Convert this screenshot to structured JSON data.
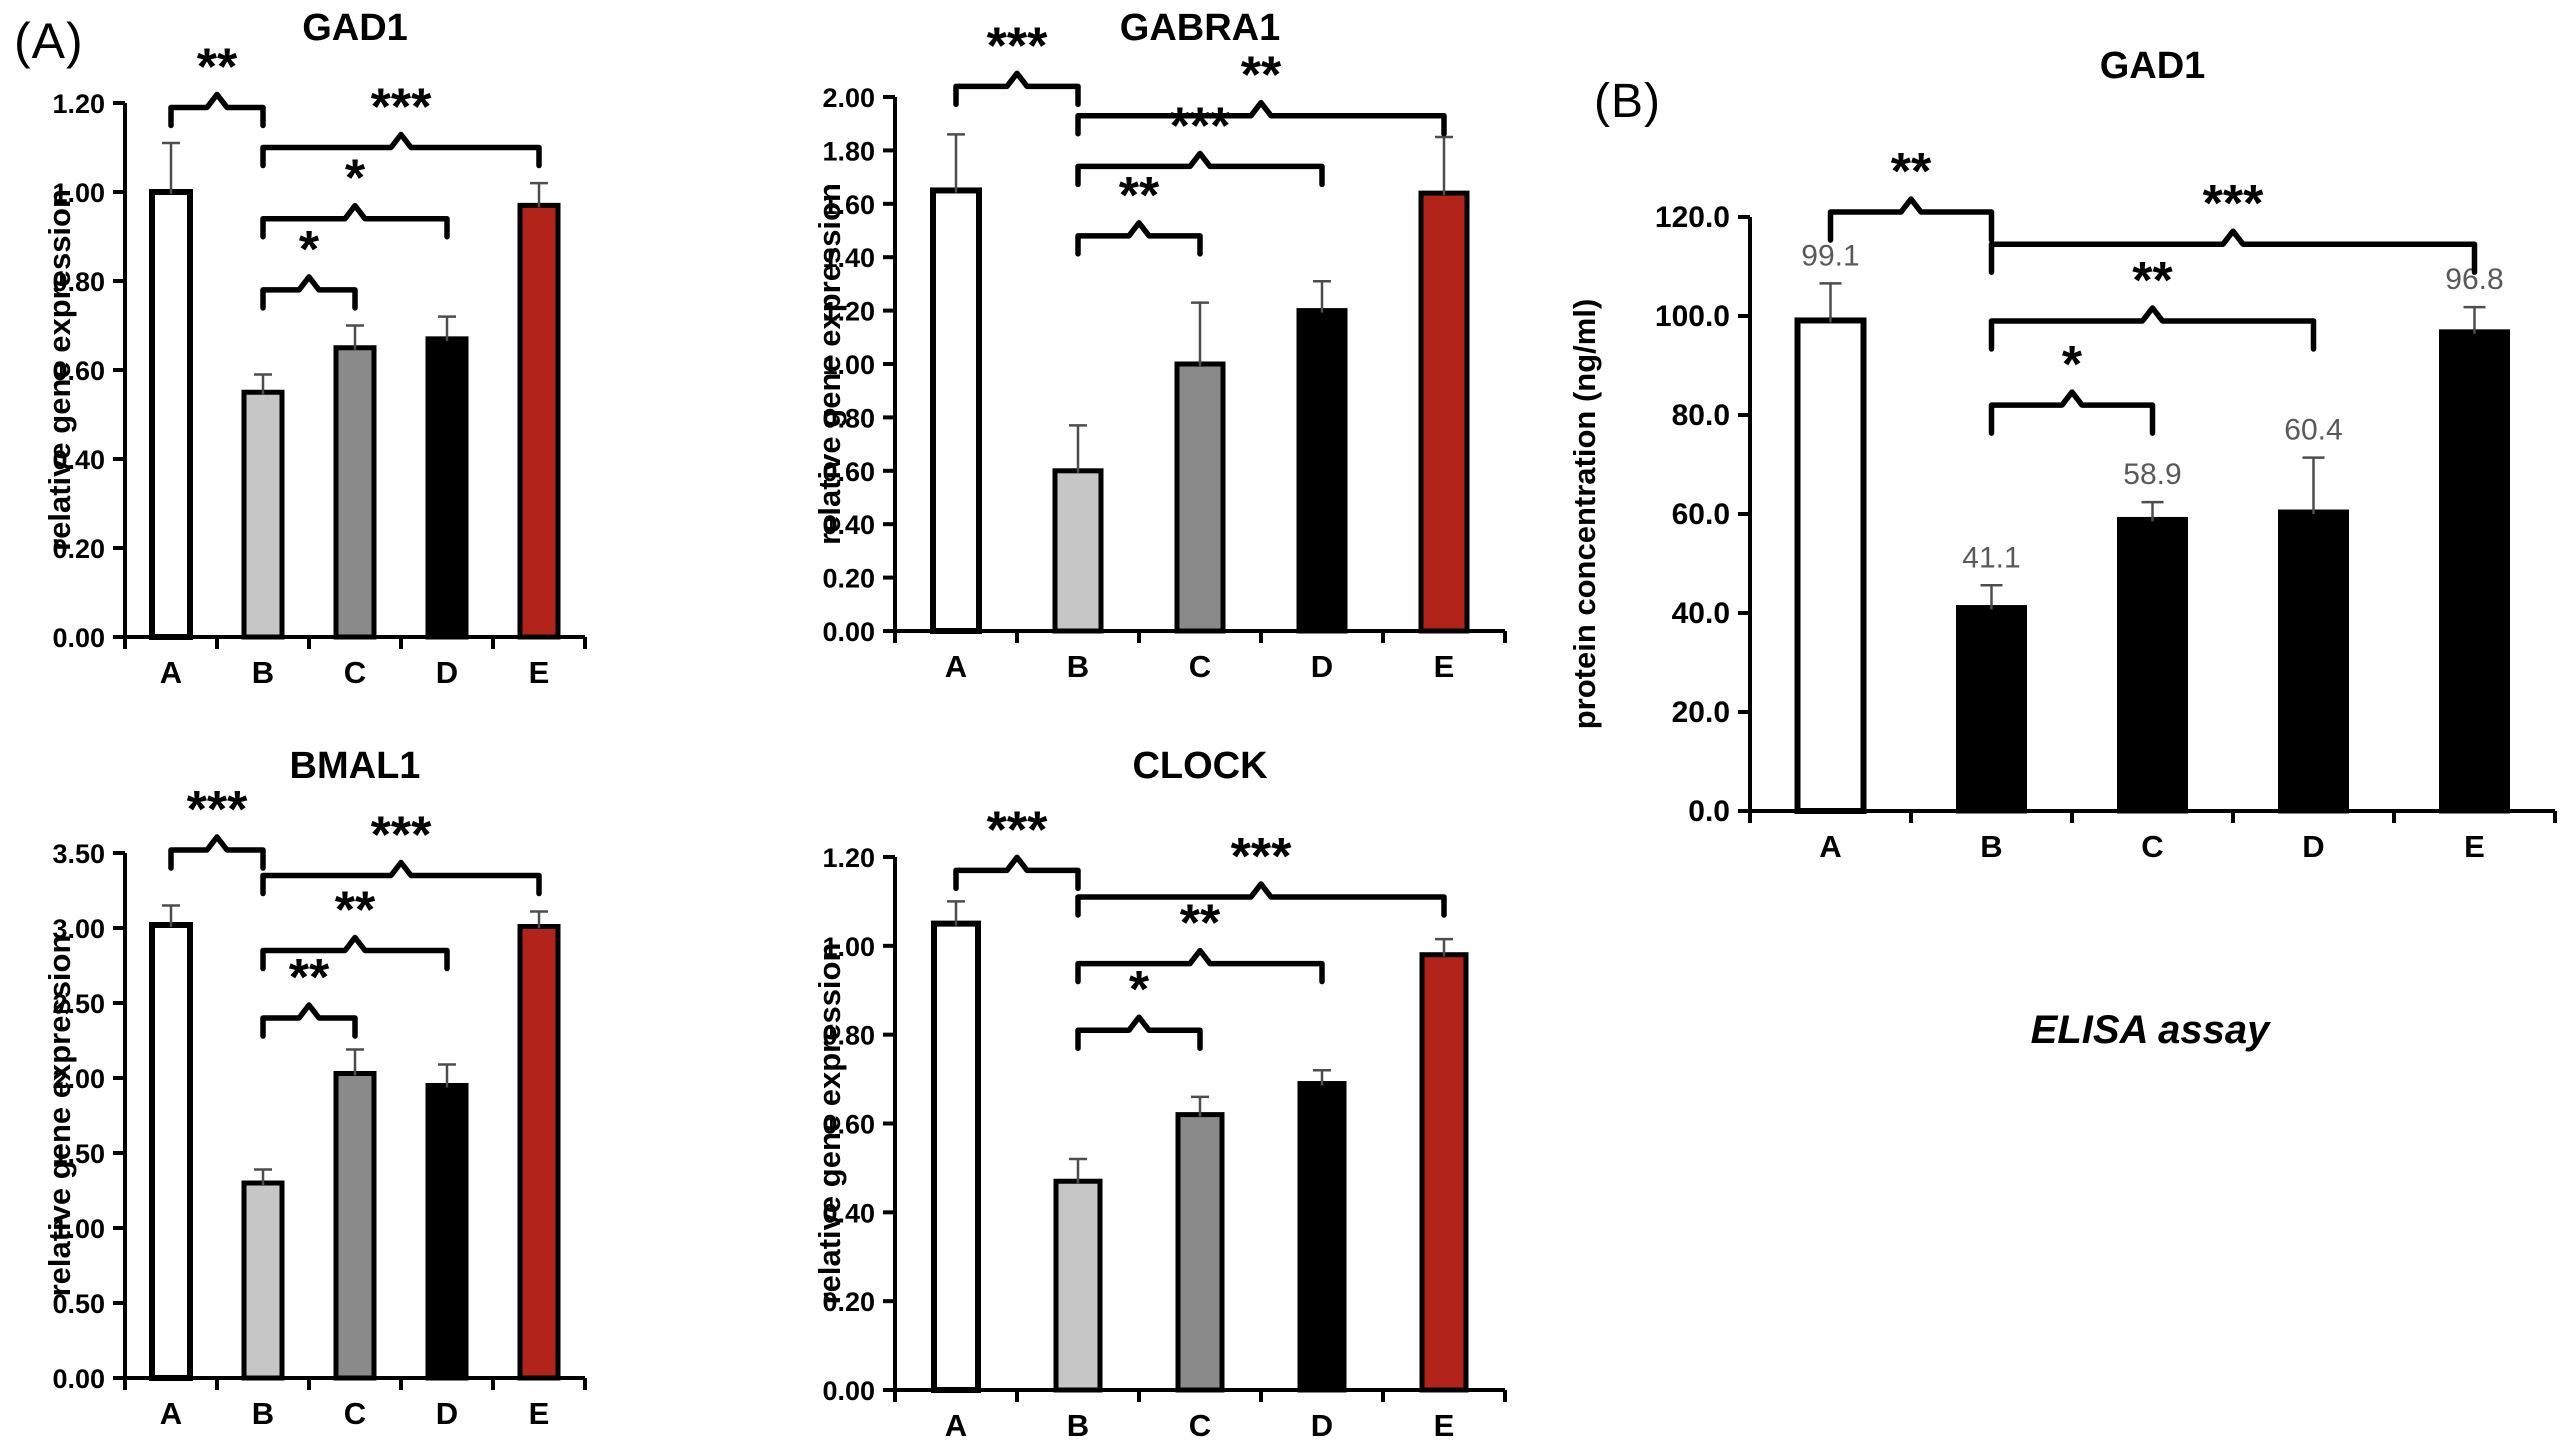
{
  "figure": {
    "panel_a_label": "(A)",
    "panel_b_label": "(B)",
    "elisa_caption": "ELISA assay"
  },
  "colors": {
    "bar_fills": {
      "white": "#ffffff",
      "light_gray": "#c6c6c6",
      "mid_gray": "#8a8a8a",
      "black": "#000000",
      "red": "#b2241a"
    },
    "bar_outline": "#000000",
    "axis": "#000000",
    "error_bar": "#4d4d4d",
    "value_label": "#595959",
    "text": "#000000"
  },
  "chart_data": [
    {
      "id": "gad1_gene",
      "panel": "A",
      "type": "bar",
      "title": "GAD1",
      "ylabel": "relative gene expression",
      "xlabel": "",
      "ylim": [
        0,
        1.2
      ],
      "ystep": 0.2,
      "ydecimals": 2,
      "grid": false,
      "legend": "none",
      "categories": [
        "A",
        "B",
        "C",
        "D",
        "E"
      ],
      "values": [
        1.0,
        0.55,
        0.65,
        0.67,
        0.97
      ],
      "errors": [
        0.11,
        0.04,
        0.05,
        0.05,
        0.05
      ],
      "fills": [
        "white",
        "light_gray",
        "mid_gray",
        "black",
        "red"
      ],
      "value_labels": null,
      "significance_brackets": [
        {
          "from": "A",
          "to": "B",
          "stars": "**",
          "y": 1.19
        },
        {
          "from": "B",
          "to": "E",
          "stars": "***",
          "y": 1.1
        },
        {
          "from": "B",
          "to": "D",
          "stars": "*",
          "y": 0.94
        },
        {
          "from": "B",
          "to": "C",
          "stars": "*",
          "y": 0.78
        }
      ]
    },
    {
      "id": "gabra1_gene",
      "panel": "A",
      "type": "bar",
      "title": "GABRA1",
      "ylabel": "relative gene expression",
      "xlabel": "",
      "ylim": [
        0,
        2.0
      ],
      "ystep": 0.2,
      "ydecimals": 2,
      "grid": false,
      "legend": "none",
      "categories": [
        "A",
        "B",
        "C",
        "D",
        "E"
      ],
      "values": [
        1.65,
        0.6,
        1.0,
        1.2,
        1.64
      ],
      "errors": [
        0.21,
        0.17,
        0.23,
        0.11,
        0.21
      ],
      "fills": [
        "white",
        "light_gray",
        "mid_gray",
        "black",
        "red"
      ],
      "value_labels": null,
      "significance_brackets": [
        {
          "from": "A",
          "to": "B",
          "stars": "***",
          "y": 2.04
        },
        {
          "from": "B",
          "to": "E",
          "stars": "**",
          "y": 1.93
        },
        {
          "from": "B",
          "to": "D",
          "stars": "***",
          "y": 1.74
        },
        {
          "from": "B",
          "to": "C",
          "stars": "**",
          "y": 1.48
        }
      ]
    },
    {
      "id": "bmal1_gene",
      "panel": "A",
      "type": "bar",
      "title": "BMAL1",
      "ylabel": "relative gene expression",
      "xlabel": "",
      "ylim": [
        0,
        3.5
      ],
      "ystep": 0.5,
      "ydecimals": 2,
      "grid": false,
      "legend": "none",
      "categories": [
        "A",
        "B",
        "C",
        "D",
        "E"
      ],
      "values": [
        3.02,
        1.3,
        2.03,
        1.95,
        3.01
      ],
      "errors": [
        0.13,
        0.09,
        0.16,
        0.14,
        0.1
      ],
      "fills": [
        "white",
        "light_gray",
        "mid_gray",
        "black",
        "red"
      ],
      "value_labels": null,
      "significance_brackets": [
        {
          "from": "A",
          "to": "B",
          "stars": "***",
          "y": 3.52
        },
        {
          "from": "B",
          "to": "E",
          "stars": "***",
          "y": 3.35
        },
        {
          "from": "B",
          "to": "D",
          "stars": "**",
          "y": 2.85
        },
        {
          "from": "B",
          "to": "C",
          "stars": "**",
          "y": 2.4
        }
      ]
    },
    {
      "id": "clock_gene",
      "panel": "A",
      "type": "bar",
      "title": "CLOCK",
      "ylabel": "relative gene expression",
      "xlabel": "",
      "ylim": [
        0,
        1.2
      ],
      "ystep": 0.2,
      "ydecimals": 2,
      "grid": false,
      "legend": "none",
      "categories": [
        "A",
        "B",
        "C",
        "D",
        "E"
      ],
      "values": [
        1.05,
        0.47,
        0.62,
        0.69,
        0.98
      ],
      "errors": [
        0.05,
        0.05,
        0.04,
        0.03,
        0.035
      ],
      "fills": [
        "white",
        "light_gray",
        "mid_gray",
        "black",
        "red"
      ],
      "value_labels": null,
      "significance_brackets": [
        {
          "from": "A",
          "to": "B",
          "stars": "***",
          "y": 1.17
        },
        {
          "from": "B",
          "to": "E",
          "stars": "***",
          "y": 1.11
        },
        {
          "from": "B",
          "to": "D",
          "stars": "**",
          "y": 0.96
        },
        {
          "from": "B",
          "to": "C",
          "stars": "*",
          "y": 0.81
        }
      ]
    },
    {
      "id": "gad1_protein",
      "panel": "B",
      "type": "bar",
      "title": "GAD1",
      "ylabel": "protein concentration (ng/ml)",
      "xlabel": "ELISA assay",
      "ylim": [
        0,
        120
      ],
      "ystep": 20,
      "ydecimals": 1,
      "grid": false,
      "legend": "none",
      "categories": [
        "A",
        "B",
        "C",
        "D",
        "E"
      ],
      "values": [
        99.1,
        41.1,
        58.9,
        60.4,
        96.8
      ],
      "errors": [
        7.5,
        4.5,
        3.5,
        11,
        5
      ],
      "fills": [
        "white",
        "black",
        "black",
        "black",
        "black"
      ],
      "value_labels": [
        "99.1",
        "41.1",
        "58.9",
        "60.4",
        "96.8"
      ],
      "significance_brackets": [
        {
          "from": "A",
          "to": "B",
          "stars": "**",
          "y": 121
        },
        {
          "from": "B",
          "to": "E",
          "stars": "***",
          "y": 114.5
        },
        {
          "from": "B",
          "to": "D",
          "stars": "**",
          "y": 99
        },
        {
          "from": "B",
          "to": "C",
          "stars": "*",
          "y": 82
        }
      ]
    }
  ]
}
